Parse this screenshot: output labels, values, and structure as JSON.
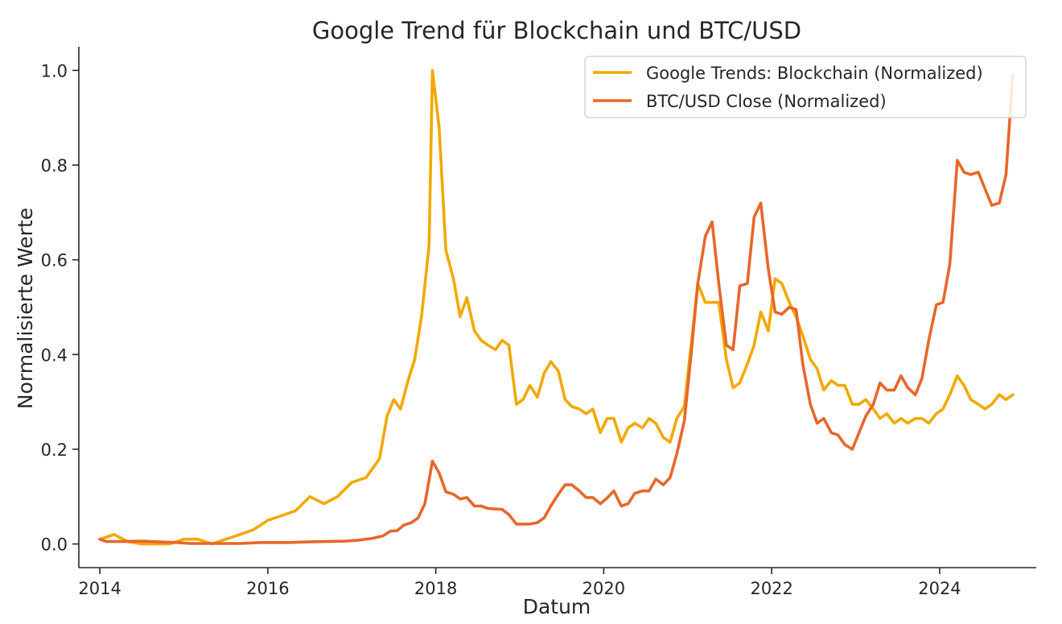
{
  "chart_data": {
    "type": "line",
    "title": "Google Trend für Blockchain und BTC/USD",
    "xlabel": "Datum",
    "ylabel": "Normalisierte Werte",
    "xlim": [
      2013.75,
      2025.15
    ],
    "ylim": [
      -0.05,
      1.05
    ],
    "x_ticks": [
      2014,
      2016,
      2018,
      2020,
      2022,
      2024
    ],
    "x_tick_labels": [
      "2014",
      "2016",
      "2018",
      "2020",
      "2022",
      "2024"
    ],
    "y_ticks": [
      0.0,
      0.2,
      0.4,
      0.6,
      0.8,
      1.0
    ],
    "y_tick_labels": [
      "0.0",
      "0.2",
      "0.4",
      "0.6",
      "0.8",
      "1.0"
    ],
    "grid": false,
    "legend_position": "top-right",
    "series": [
      {
        "name": "Google Trends: Blockchain (Normalized)",
        "color": "#F2A900",
        "points": [
          [
            2014.0,
            0.01
          ],
          [
            2014.17,
            0.02
          ],
          [
            2014.33,
            0.005
          ],
          [
            2014.5,
            0.0
          ],
          [
            2014.67,
            0.0
          ],
          [
            2014.83,
            0.0
          ],
          [
            2015.0,
            0.01
          ],
          [
            2015.17,
            0.01
          ],
          [
            2015.33,
            0.0
          ],
          [
            2015.5,
            0.01
          ],
          [
            2015.67,
            0.02
          ],
          [
            2015.83,
            0.03
          ],
          [
            2016.0,
            0.05
          ],
          [
            2016.17,
            0.06
          ],
          [
            2016.33,
            0.07
          ],
          [
            2016.5,
            0.1
          ],
          [
            2016.67,
            0.085
          ],
          [
            2016.83,
            0.1
          ],
          [
            2017.0,
            0.13
          ],
          [
            2017.17,
            0.14
          ],
          [
            2017.33,
            0.18
          ],
          [
            2017.42,
            0.27
          ],
          [
            2017.5,
            0.305
          ],
          [
            2017.58,
            0.285
          ],
          [
            2017.67,
            0.345
          ],
          [
            2017.75,
            0.39
          ],
          [
            2017.83,
            0.48
          ],
          [
            2017.92,
            0.63
          ],
          [
            2017.96,
            1.0
          ],
          [
            2018.04,
            0.88
          ],
          [
            2018.12,
            0.62
          ],
          [
            2018.21,
            0.56
          ],
          [
            2018.29,
            0.48
          ],
          [
            2018.37,
            0.52
          ],
          [
            2018.46,
            0.45
          ],
          [
            2018.54,
            0.43
          ],
          [
            2018.62,
            0.42
          ],
          [
            2018.71,
            0.41
          ],
          [
            2018.79,
            0.43
          ],
          [
            2018.87,
            0.42
          ],
          [
            2018.96,
            0.295
          ],
          [
            2019.04,
            0.305
          ],
          [
            2019.12,
            0.335
          ],
          [
            2019.21,
            0.31
          ],
          [
            2019.29,
            0.36
          ],
          [
            2019.37,
            0.385
          ],
          [
            2019.46,
            0.365
          ],
          [
            2019.54,
            0.305
          ],
          [
            2019.62,
            0.29
          ],
          [
            2019.71,
            0.285
          ],
          [
            2019.79,
            0.275
          ],
          [
            2019.87,
            0.285
          ],
          [
            2019.96,
            0.235
          ],
          [
            2020.04,
            0.265
          ],
          [
            2020.12,
            0.265
          ],
          [
            2020.21,
            0.215
          ],
          [
            2020.29,
            0.245
          ],
          [
            2020.37,
            0.255
          ],
          [
            2020.46,
            0.245
          ],
          [
            2020.54,
            0.265
          ],
          [
            2020.62,
            0.255
          ],
          [
            2020.71,
            0.225
          ],
          [
            2020.79,
            0.215
          ],
          [
            2020.87,
            0.265
          ],
          [
            2020.96,
            0.29
          ],
          [
            2021.04,
            0.42
          ],
          [
            2021.12,
            0.55
          ],
          [
            2021.21,
            0.51
          ],
          [
            2021.29,
            0.51
          ],
          [
            2021.37,
            0.51
          ],
          [
            2021.46,
            0.39
          ],
          [
            2021.54,
            0.33
          ],
          [
            2021.62,
            0.34
          ],
          [
            2021.71,
            0.38
          ],
          [
            2021.79,
            0.42
          ],
          [
            2021.87,
            0.49
          ],
          [
            2021.96,
            0.45
          ],
          [
            2022.04,
            0.56
          ],
          [
            2022.12,
            0.55
          ],
          [
            2022.21,
            0.51
          ],
          [
            2022.29,
            0.48
          ],
          [
            2022.37,
            0.44
          ],
          [
            2022.46,
            0.39
          ],
          [
            2022.54,
            0.37
          ],
          [
            2022.62,
            0.325
          ],
          [
            2022.71,
            0.345
          ],
          [
            2022.79,
            0.335
          ],
          [
            2022.87,
            0.335
          ],
          [
            2022.96,
            0.295
          ],
          [
            2023.04,
            0.295
          ],
          [
            2023.12,
            0.305
          ],
          [
            2023.21,
            0.285
          ],
          [
            2023.29,
            0.265
          ],
          [
            2023.37,
            0.275
          ],
          [
            2023.46,
            0.255
          ],
          [
            2023.54,
            0.265
          ],
          [
            2023.62,
            0.255
          ],
          [
            2023.71,
            0.265
          ],
          [
            2023.79,
            0.265
          ],
          [
            2023.87,
            0.255
          ],
          [
            2023.96,
            0.275
          ],
          [
            2024.04,
            0.285
          ],
          [
            2024.12,
            0.315
          ],
          [
            2024.21,
            0.355
          ],
          [
            2024.29,
            0.335
          ],
          [
            2024.37,
            0.305
          ],
          [
            2024.46,
            0.295
          ],
          [
            2024.54,
            0.285
          ],
          [
            2024.62,
            0.295
          ],
          [
            2024.71,
            0.315
          ],
          [
            2024.79,
            0.305
          ],
          [
            2024.87,
            0.315
          ]
        ]
      },
      {
        "name": "BTC/USD Close (Normalized)",
        "color": "#E8672A",
        "points": [
          [
            2014.0,
            0.01
          ],
          [
            2014.08,
            0.005
          ],
          [
            2014.25,
            0.005
          ],
          [
            2014.5,
            0.006
          ],
          [
            2014.75,
            0.004
          ],
          [
            2014.92,
            0.003
          ],
          [
            2015.08,
            0.001
          ],
          [
            2015.33,
            0.001
          ],
          [
            2015.67,
            0.001
          ],
          [
            2015.92,
            0.003
          ],
          [
            2016.25,
            0.003
          ],
          [
            2016.42,
            0.004
          ],
          [
            2016.67,
            0.005
          ],
          [
            2016.92,
            0.006
          ],
          [
            2017.08,
            0.008
          ],
          [
            2017.25,
            0.012
          ],
          [
            2017.37,
            0.017
          ],
          [
            2017.46,
            0.027
          ],
          [
            2017.54,
            0.028
          ],
          [
            2017.62,
            0.04
          ],
          [
            2017.71,
            0.045
          ],
          [
            2017.79,
            0.055
          ],
          [
            2017.87,
            0.085
          ],
          [
            2017.96,
            0.175
          ],
          [
            2018.04,
            0.15
          ],
          [
            2018.12,
            0.11
          ],
          [
            2018.21,
            0.105
          ],
          [
            2018.29,
            0.095
          ],
          [
            2018.37,
            0.098
          ],
          [
            2018.46,
            0.08
          ],
          [
            2018.54,
            0.08
          ],
          [
            2018.62,
            0.075
          ],
          [
            2018.79,
            0.073
          ],
          [
            2018.87,
            0.062
          ],
          [
            2018.96,
            0.042
          ],
          [
            2019.04,
            0.042
          ],
          [
            2019.12,
            0.042
          ],
          [
            2019.21,
            0.045
          ],
          [
            2019.29,
            0.055
          ],
          [
            2019.37,
            0.08
          ],
          [
            2019.46,
            0.105
          ],
          [
            2019.54,
            0.125
          ],
          [
            2019.62,
            0.125
          ],
          [
            2019.71,
            0.112
          ],
          [
            2019.79,
            0.098
          ],
          [
            2019.87,
            0.098
          ],
          [
            2019.96,
            0.085
          ],
          [
            2020.04,
            0.097
          ],
          [
            2020.12,
            0.112
          ],
          [
            2020.21,
            0.08
          ],
          [
            2020.29,
            0.085
          ],
          [
            2020.37,
            0.107
          ],
          [
            2020.46,
            0.112
          ],
          [
            2020.54,
            0.112
          ],
          [
            2020.62,
            0.137
          ],
          [
            2020.71,
            0.125
          ],
          [
            2020.79,
            0.14
          ],
          [
            2020.87,
            0.19
          ],
          [
            2020.96,
            0.26
          ],
          [
            2021.04,
            0.4
          ],
          [
            2021.12,
            0.55
          ],
          [
            2021.21,
            0.65
          ],
          [
            2021.29,
            0.68
          ],
          [
            2021.37,
            0.55
          ],
          [
            2021.46,
            0.42
          ],
          [
            2021.54,
            0.41
          ],
          [
            2021.62,
            0.545
          ],
          [
            2021.71,
            0.55
          ],
          [
            2021.79,
            0.69
          ],
          [
            2021.87,
            0.72
          ],
          [
            2021.96,
            0.58
          ],
          [
            2022.04,
            0.49
          ],
          [
            2022.12,
            0.485
          ],
          [
            2022.21,
            0.5
          ],
          [
            2022.29,
            0.495
          ],
          [
            2022.37,
            0.38
          ],
          [
            2022.46,
            0.295
          ],
          [
            2022.54,
            0.255
          ],
          [
            2022.62,
            0.265
          ],
          [
            2022.71,
            0.235
          ],
          [
            2022.79,
            0.23
          ],
          [
            2022.87,
            0.21
          ],
          [
            2022.96,
            0.2
          ],
          [
            2023.04,
            0.235
          ],
          [
            2023.12,
            0.27
          ],
          [
            2023.21,
            0.295
          ],
          [
            2023.29,
            0.34
          ],
          [
            2023.37,
            0.325
          ],
          [
            2023.46,
            0.325
          ],
          [
            2023.54,
            0.355
          ],
          [
            2023.62,
            0.33
          ],
          [
            2023.71,
            0.315
          ],
          [
            2023.79,
            0.35
          ],
          [
            2023.87,
            0.43
          ],
          [
            2023.96,
            0.505
          ],
          [
            2024.04,
            0.51
          ],
          [
            2024.12,
            0.59
          ],
          [
            2024.21,
            0.81
          ],
          [
            2024.29,
            0.785
          ],
          [
            2024.37,
            0.78
          ],
          [
            2024.46,
            0.785
          ],
          [
            2024.54,
            0.75
          ],
          [
            2024.62,
            0.715
          ],
          [
            2024.71,
            0.72
          ],
          [
            2024.79,
            0.78
          ],
          [
            2024.87,
            0.99
          ]
        ]
      }
    ]
  }
}
